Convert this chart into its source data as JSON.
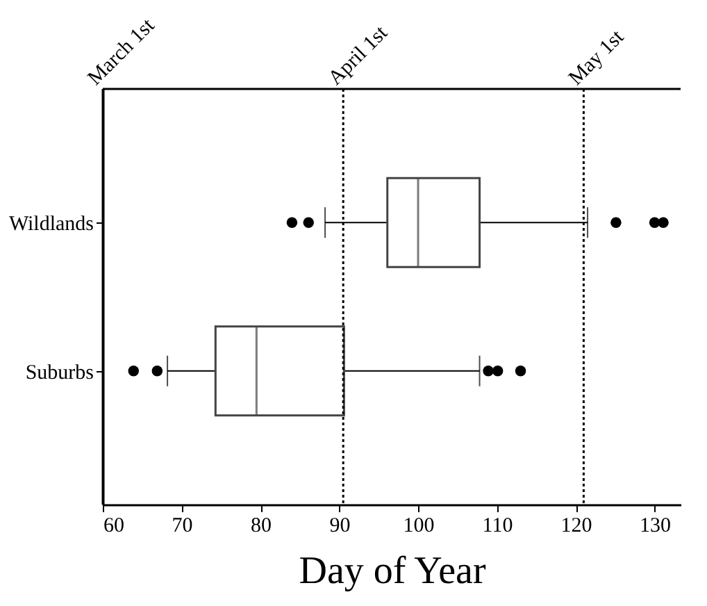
{
  "chart_data": {
    "type": "box",
    "orientation": "horizontal",
    "xlabel": "Day of Year",
    "categories": [
      "Wildlands",
      "Suburbs"
    ],
    "boxes": [
      {
        "low": 88.2,
        "q1": 96.1,
        "median": 100.0,
        "q3": 107.8,
        "high": 121.5,
        "outliers": [
          84.0,
          86.1,
          125.1,
          130.0,
          131.1
        ]
      },
      {
        "low": 68.2,
        "q1": 74.3,
        "median": 79.5,
        "q3": 90.6,
        "high": 107.8,
        "outliers": [
          63.9,
          66.9,
          108.9,
          110.1,
          113.0
        ]
      }
    ],
    "xlim": [
      60,
      133.3
    ],
    "xticks": [
      60,
      70,
      80,
      90,
      100,
      110,
      120,
      130
    ],
    "ref_lines": [
      {
        "axis": "x",
        "value": 60,
        "label": "March 1st",
        "color": "#000000",
        "line_style": "solid"
      },
      {
        "axis": "x",
        "value": 90.5,
        "label": "April 1st",
        "color": "#000000",
        "line_style": "dotted"
      },
      {
        "axis": "x",
        "value": 121,
        "label": "May 1st",
        "color": "#000000",
        "line_style": "dotted"
      }
    ],
    "grid": false
  }
}
